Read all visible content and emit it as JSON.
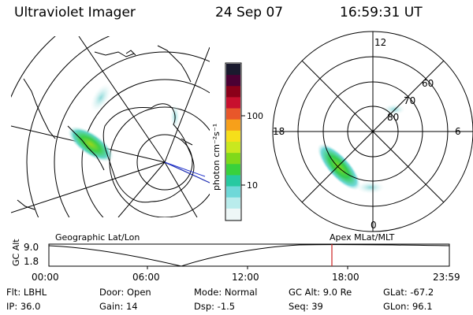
{
  "header": {
    "title": "Ultraviolet Imager",
    "date": "24 Sep 07",
    "time": "16:59:31 UT"
  },
  "colorbar": {
    "unit_label": "photon cm⁻²s⁻¹",
    "tick_labels": [
      "100",
      "10"
    ],
    "colors": [
      "#1a1a2e",
      "#4b0033",
      "#8b0019",
      "#c8102e",
      "#e8572a",
      "#f7a01a",
      "#f6df1a",
      "#c9e81f",
      "#7fd91a",
      "#39d13c",
      "#27c9a0",
      "#6fd8d8",
      "#b9ecec",
      "#eef7f7"
    ]
  },
  "geographic_map": {
    "label": "Geographic Lat/Lon"
  },
  "polar_plot": {
    "label": "Apex MLat/MLT",
    "mlt_labels": {
      "top": "12",
      "right": "6",
      "bottom": "0",
      "left": "18"
    },
    "lat_labels": [
      "60",
      "70",
      "80"
    ]
  },
  "altitude_plot": {
    "axis_label": "GC Alt",
    "y_ticks": [
      "9.0",
      "1.8"
    ],
    "x_ticks": [
      "00:00",
      "06:00",
      "12:00",
      "18:00",
      "23:59"
    ],
    "marker_color": "#cc2222"
  },
  "info": {
    "flt": "Flt: LBHL",
    "ip": "IP: 36.0",
    "door": "Door: Open",
    "gain": "Gain: 14",
    "mode": "Mode: Normal",
    "dsp": "Dsp:   -1.5",
    "gcalt": "GC Alt: 9.0 Re",
    "seq": "Seq: 39",
    "glat": "GLat: -67.2",
    "glon": "GLon:  96.1"
  }
}
